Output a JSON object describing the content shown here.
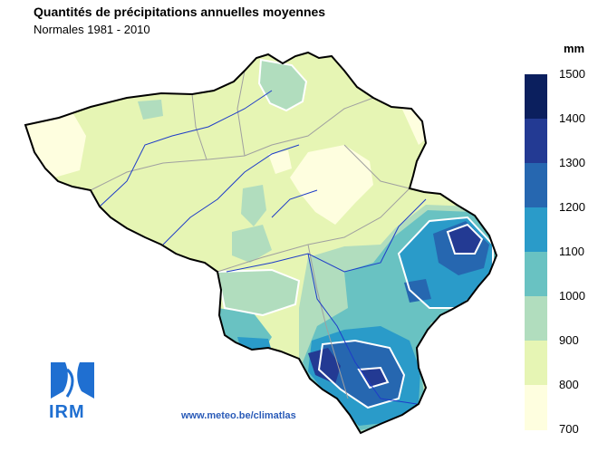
{
  "title": "Quantités de précipitations annuelles moyennes",
  "subtitle": "Normales 1981 - 2010",
  "legend": {
    "unit": "mm",
    "breaks": [
      {
        "label": "1500",
        "color": "#0b1f5e"
      },
      {
        "label": "1400",
        "color": "#233a93"
      },
      {
        "label": "1300",
        "color": "#2667b0"
      },
      {
        "label": "1200",
        "color": "#2a9bc9"
      },
      {
        "label": "1100",
        "color": "#69c2c2"
      },
      {
        "label": "1000",
        "color": "#b1ddbe"
      },
      {
        "label": "900",
        "color": "#e6f5b4"
      },
      {
        "label": "800",
        "color": "#fefedf"
      },
      {
        "label": "700",
        "color": "#fefedf"
      }
    ]
  },
  "logo": {
    "text": "IRM",
    "color": "#1f6fd1"
  },
  "footer": {
    "url": "www.meteo.be/climatlas"
  }
}
